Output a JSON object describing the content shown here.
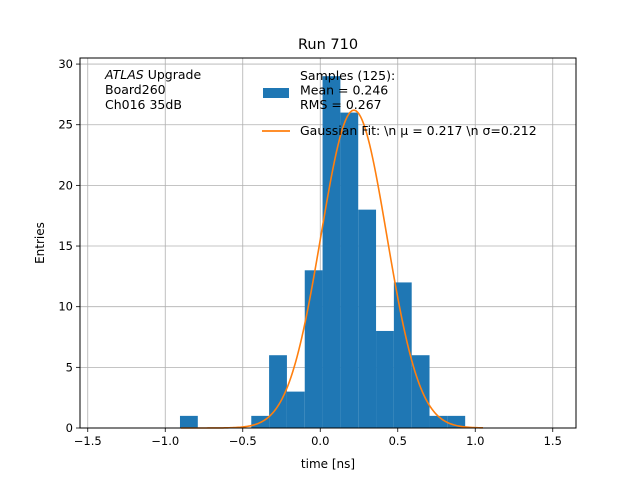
{
  "chart_data": {
    "type": "bar",
    "title": "Run 710",
    "xlabel": "time [ns]",
    "ylabel": "Entries",
    "xlim": [
      -1.55,
      1.65
    ],
    "ylim": [
      0,
      30.5
    ],
    "grid": true,
    "x_ticks": [
      -1.5,
      -1.0,
      -0.5,
      0.0,
      0.5,
      1.0,
      1.5
    ],
    "x_tick_labels": [
      "−1.5",
      "−1.0",
      "−0.5",
      "0.0",
      "0.5",
      "1.0",
      "1.5"
    ],
    "y_ticks": [
      0,
      5,
      10,
      15,
      20,
      25,
      30
    ],
    "y_tick_labels": [
      "0",
      "5",
      "10",
      "15",
      "20",
      "25",
      "30"
    ],
    "annotation_lines": [
      "ATLAS Upgrade",
      " Board260",
      " Ch016 35dB"
    ],
    "series": [
      {
        "kind": "histogram",
        "color": "#1f77b4",
        "legend_lines": [
          "Samples (125):",
          " Mean = 0.246",
          " RMS = 0.267"
        ],
        "bin_edges": [
          -0.905,
          -0.79,
          -0.675,
          -0.56,
          -0.445,
          -0.33,
          -0.215,
          -0.1,
          0.015,
          0.13,
          0.245,
          0.36,
          0.475,
          0.59,
          0.705,
          0.82,
          0.935,
          1.05
        ],
        "values": [
          1,
          0,
          0,
          0,
          1,
          6,
          3,
          13,
          29,
          26,
          18,
          8,
          12,
          6,
          1,
          1,
          0
        ]
      },
      {
        "kind": "gaussian-fit",
        "color": "#ff7f0e",
        "legend_text": "Gaussian Fit: \\n μ = 0.217 \\n σ=0.212",
        "mu": 0.217,
        "sigma": 0.212,
        "amplitude": 26.2,
        "x_range": [
          -0.9,
          1.05
        ]
      }
    ],
    "legend_placement": "top-right"
  }
}
